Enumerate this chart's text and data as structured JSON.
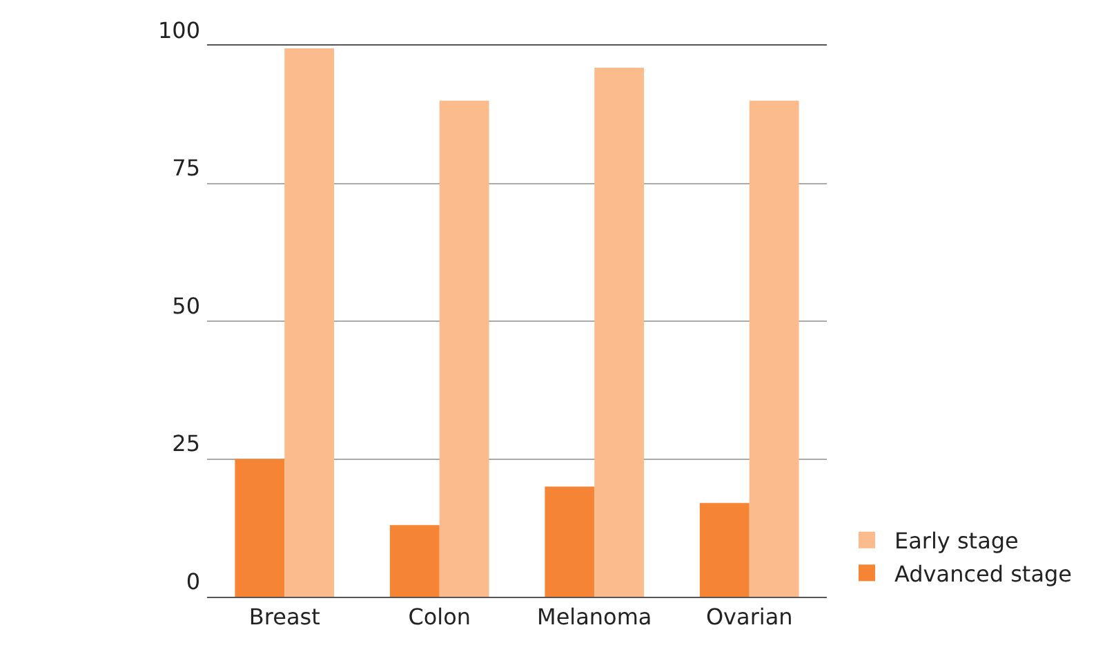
{
  "chart_data": {
    "type": "bar",
    "categories": [
      "Breast",
      "Colon",
      "Melanoma",
      "Ovarian"
    ],
    "series": [
      {
        "name": "Advanced stage",
        "color": "#f58434",
        "values": [
          25,
          13,
          20,
          17
        ]
      },
      {
        "name": "Early stage",
        "color": "#fbbb8c",
        "values": [
          99.5,
          90,
          96,
          90
        ]
      }
    ],
    "ylim": [
      0,
      100
    ],
    "yticks": [
      0,
      25,
      50,
      75,
      100
    ],
    "grid": "y",
    "legend": "bottom right"
  }
}
